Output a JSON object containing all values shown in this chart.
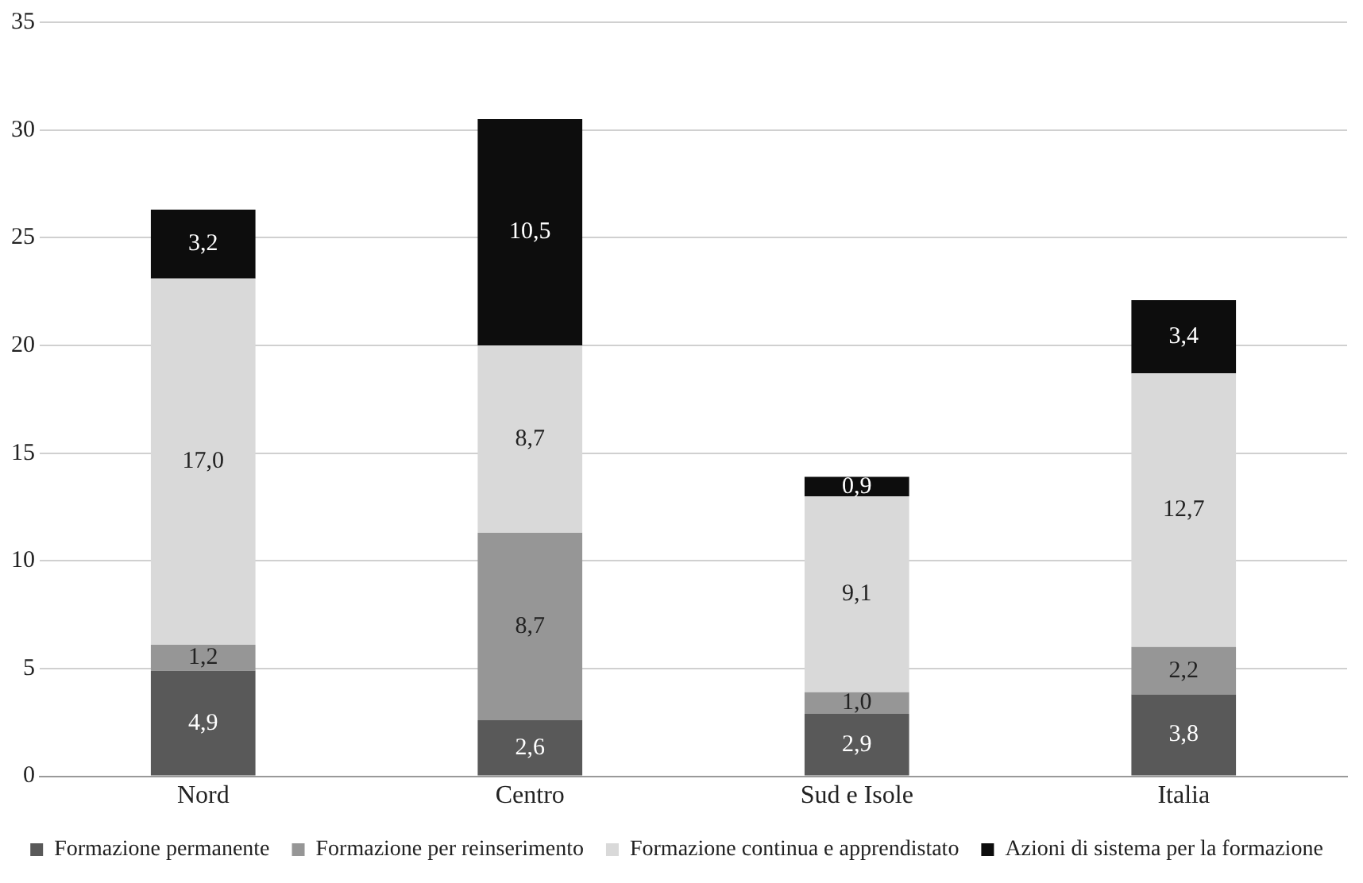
{
  "chart_data": {
    "type": "bar",
    "stacked": true,
    "categories": [
      "Nord",
      "Centro",
      "Sud e Isole",
      "Italia"
    ],
    "series": [
      {
        "name": "Formazione permanente",
        "color": "#595959",
        "values": [
          4.9,
          2.6,
          2.9,
          3.8
        ],
        "value_labels": [
          "4,9",
          "2,6",
          "2,9",
          "3,8"
        ]
      },
      {
        "name": "Formazione per reinserimento",
        "color": "#969696",
        "values": [
          1.2,
          8.7,
          1.0,
          2.2
        ],
        "value_labels": [
          "1,2",
          "8,7",
          "1,0",
          "2,2"
        ]
      },
      {
        "name": "Formazione continua e apprendistato",
        "color": "#d9d9d9",
        "values": [
          17.0,
          8.7,
          9.1,
          12.7
        ],
        "value_labels": [
          "17,0",
          "8,7",
          "9,1",
          "12,7"
        ]
      },
      {
        "name": "Azioni di sistema per la formazione",
        "color": "#0d0d0d",
        "values": [
          3.2,
          10.5,
          0.9,
          3.4
        ],
        "value_labels": [
          "3,2",
          "10,5",
          "0,9",
          "3,4"
        ]
      }
    ],
    "ylim": [
      0,
      35
    ],
    "yticks": [
      0,
      5,
      10,
      15,
      20,
      25,
      30,
      35
    ],
    "grid": "y",
    "legend": "bottom"
  }
}
